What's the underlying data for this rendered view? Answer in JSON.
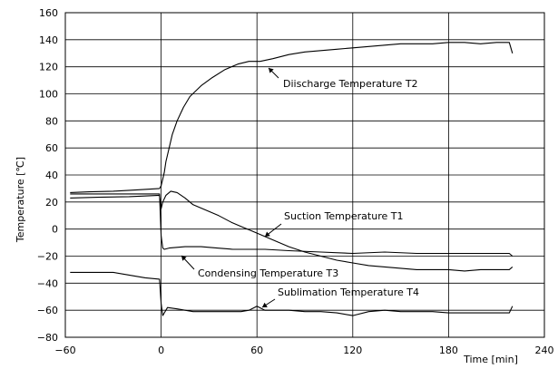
{
  "chart_data": {
    "type": "line",
    "xlabel": "Time [min]",
    "ylabel": "Temperature [℃]",
    "xlim": [
      -60,
      240
    ],
    "ylim": [
      -80,
      160
    ],
    "xticks": [
      -60,
      0,
      60,
      120,
      180,
      240
    ],
    "yticks": [
      -80,
      -60,
      -40,
      -20,
      0,
      20,
      40,
      60,
      80,
      100,
      120,
      140,
      160
    ],
    "x_tick_labels": [
      "−60",
      "0",
      "60",
      "120",
      "180",
      "240"
    ],
    "y_tick_labels": [
      "−80",
      "−60",
      "−40",
      "−20",
      "0",
      "20",
      "40",
      "60",
      "80",
      "100",
      "120",
      "140",
      "160"
    ],
    "grid": true,
    "series": [
      {
        "name": "Diischarge Temperature T2",
        "color": "#000000",
        "points": [
          [
            -57,
            27
          ],
          [
            -45,
            27.5
          ],
          [
            -30,
            28
          ],
          [
            -15,
            29
          ],
          [
            -1,
            30
          ],
          [
            0,
            32
          ],
          [
            1,
            37
          ],
          [
            2,
            42
          ],
          [
            3,
            50
          ],
          [
            5,
            60
          ],
          [
            7,
            70
          ],
          [
            10,
            80
          ],
          [
            14,
            90
          ],
          [
            18,
            98
          ],
          [
            25,
            106
          ],
          [
            32,
            112
          ],
          [
            40,
            118
          ],
          [
            48,
            122
          ],
          [
            55,
            124
          ],
          [
            62,
            124
          ],
          [
            70,
            126
          ],
          [
            80,
            129
          ],
          [
            90,
            131
          ],
          [
            100,
            132
          ],
          [
            110,
            133
          ],
          [
            120,
            134
          ],
          [
            130,
            135
          ],
          [
            140,
            136
          ],
          [
            150,
            137
          ],
          [
            160,
            137
          ],
          [
            170,
            137
          ],
          [
            180,
            138
          ],
          [
            190,
            138
          ],
          [
            200,
            137
          ],
          [
            210,
            138
          ],
          [
            218,
            138
          ],
          [
            220,
            130
          ]
        ]
      },
      {
        "name": "Suction Temperature T1",
        "color": "#000000",
        "points": [
          [
            -57,
            23
          ],
          [
            -40,
            23.5
          ],
          [
            -20,
            24
          ],
          [
            -1,
            25
          ],
          [
            0,
            15
          ],
          [
            1,
            20
          ],
          [
            3,
            25
          ],
          [
            6,
            28
          ],
          [
            10,
            27
          ],
          [
            15,
            23
          ],
          [
            20,
            18
          ],
          [
            28,
            14
          ],
          [
            36,
            10
          ],
          [
            44,
            5
          ],
          [
            52,
            1
          ],
          [
            60,
            -3
          ],
          [
            70,
            -8
          ],
          [
            80,
            -13
          ],
          [
            90,
            -17
          ],
          [
            100,
            -20
          ],
          [
            110,
            -23
          ],
          [
            120,
            -25
          ],
          [
            130,
            -27
          ],
          [
            140,
            -28
          ],
          [
            150,
            -29
          ],
          [
            160,
            -30
          ],
          [
            170,
            -30
          ],
          [
            180,
            -30
          ],
          [
            190,
            -31
          ],
          [
            200,
            -30
          ],
          [
            210,
            -30
          ],
          [
            218,
            -30
          ],
          [
            220,
            -28
          ]
        ]
      },
      {
        "name": "Condensing Temperature T3",
        "color": "#000000",
        "points": [
          [
            -57,
            26
          ],
          [
            -40,
            26
          ],
          [
            -20,
            26
          ],
          [
            -1,
            26
          ],
          [
            0,
            -5
          ],
          [
            1,
            -14
          ],
          [
            2,
            -15
          ],
          [
            5,
            -14
          ],
          [
            15,
            -13
          ],
          [
            25,
            -13
          ],
          [
            35,
            -14
          ],
          [
            45,
            -15
          ],
          [
            55,
            -15
          ],
          [
            65,
            -15
          ],
          [
            80,
            -16
          ],
          [
            100,
            -17
          ],
          [
            120,
            -18
          ],
          [
            140,
            -17
          ],
          [
            160,
            -18
          ],
          [
            180,
            -18
          ],
          [
            200,
            -18
          ],
          [
            218,
            -18
          ],
          [
            220,
            -20
          ]
        ]
      },
      {
        "name": "Sublimation Temperature T4",
        "color": "#000000",
        "points": [
          [
            -57,
            -32
          ],
          [
            -40,
            -32
          ],
          [
            -30,
            -32
          ],
          [
            -20,
            -34
          ],
          [
            -10,
            -36
          ],
          [
            -1,
            -37
          ],
          [
            0,
            -55
          ],
          [
            1,
            -64
          ],
          [
            2,
            -62
          ],
          [
            4,
            -58
          ],
          [
            10,
            -59
          ],
          [
            20,
            -61
          ],
          [
            30,
            -61
          ],
          [
            40,
            -61
          ],
          [
            50,
            -61
          ],
          [
            55,
            -60
          ],
          [
            60,
            -57
          ],
          [
            65,
            -60
          ],
          [
            70,
            -60
          ],
          [
            80,
            -60
          ],
          [
            90,
            -61
          ],
          [
            100,
            -61
          ],
          [
            110,
            -62
          ],
          [
            120,
            -64
          ],
          [
            130,
            -61
          ],
          [
            140,
            -60
          ],
          [
            150,
            -61
          ],
          [
            160,
            -61
          ],
          [
            170,
            -61
          ],
          [
            180,
            -62
          ],
          [
            190,
            -62
          ],
          [
            200,
            -62
          ],
          [
            210,
            -62
          ],
          [
            218,
            -62
          ],
          [
            220,
            -57
          ]
        ]
      }
    ],
    "annotations": [
      {
        "text": "Diischarge Temperature T2",
        "series": 0,
        "x": 67,
        "y": 115
      },
      {
        "text": "Suction Temperature T1",
        "series": 1,
        "x": 75,
        "y": 9
      },
      {
        "text": "Condensing Temperature T3",
        "series": 2,
        "x": 14,
        "y": -31
      },
      {
        "text": "Sublimation Temperature T4",
        "series": 3,
        "x": 72,
        "y": -52
      }
    ]
  }
}
